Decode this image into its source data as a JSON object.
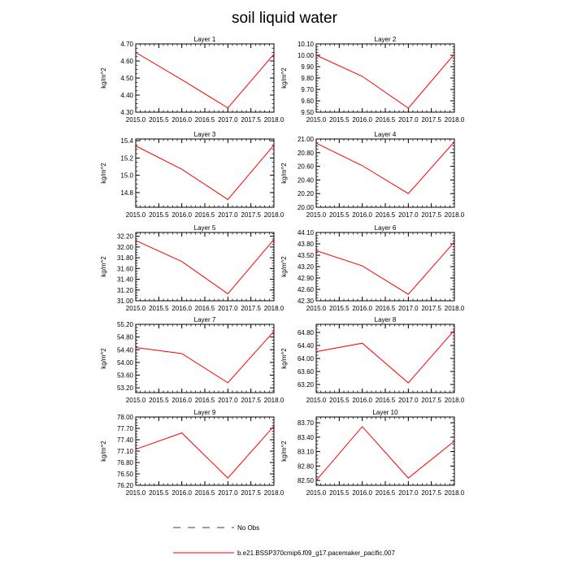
{
  "title": "soil liquid water",
  "legend": {
    "no_obs_label": "No Obs",
    "series_label": "b.e21.BSSP370cmip6.f09_g17.pacemaker_pacific.007",
    "colors": {
      "no_obs": "#3b2aa0",
      "series": "#ff0000"
    }
  },
  "chart_data": [
    {
      "type": "line",
      "title": "Layer 1",
      "ylabel": "kg/m^2",
      "x": [
        2015,
        2016,
        2017,
        2018
      ],
      "xlim": [
        2015,
        2018
      ],
      "xticks": [
        "2015.0",
        "2015.5",
        "2016.0",
        "2016.5",
        "2017.0",
        "2017.5",
        "2018.0"
      ],
      "ylim": [
        4.3,
        4.7
      ],
      "yticks": [
        "4.30",
        "4.40",
        "4.50",
        "4.60",
        "4.70"
      ],
      "series": [
        {
          "values": [
            4.65,
            4.49,
            4.325,
            4.64
          ],
          "color": "#ff0000"
        }
      ]
    },
    {
      "type": "line",
      "title": "Layer 2",
      "ylabel": "kg/m^2",
      "x": [
        2015,
        2016,
        2017,
        2018
      ],
      "xlim": [
        2015,
        2018
      ],
      "xticks": [
        "2015.0",
        "2015.5",
        "2016.0",
        "2016.5",
        "2017.0",
        "2017.5",
        "2018.0"
      ],
      "ylim": [
        9.5,
        10.1
      ],
      "yticks": [
        "9.50",
        "9.60",
        "9.70",
        "9.80",
        "9.90",
        "10.00",
        "10.10"
      ],
      "series": [
        {
          "values": [
            10.0,
            9.815,
            9.535,
            10.01
          ],
          "color": "#ff0000"
        }
      ]
    },
    {
      "type": "line",
      "title": "Layer 3",
      "ylabel": "kg/m^2",
      "x": [
        2015,
        2016,
        2017,
        2018
      ],
      "xlim": [
        2015,
        2018
      ],
      "xticks": [
        "2015.0",
        "2015.5",
        "2016.0",
        "2016.5",
        "2017.0",
        "2017.5",
        "2018.0"
      ],
      "ylim": [
        14.63,
        15.42
      ],
      "yticks": [
        "14.8",
        "15.0",
        "15.2",
        "15.4"
      ],
      "series": [
        {
          "values": [
            15.34,
            15.07,
            14.72,
            15.35
          ],
          "color": "#ff0000"
        }
      ]
    },
    {
      "type": "line",
      "title": "Layer 4",
      "ylabel": "kg/m^2",
      "x": [
        2015,
        2016,
        2017,
        2018
      ],
      "xlim": [
        2015,
        2018
      ],
      "xticks": [
        "2015.0",
        "2015.5",
        "2016.0",
        "2016.5",
        "2017.0",
        "2017.5",
        "2018.0"
      ],
      "ylim": [
        20.0,
        21.0
      ],
      "yticks": [
        "20.00",
        "20.20",
        "20.40",
        "20.60",
        "20.80",
        "21.00"
      ],
      "series": [
        {
          "values": [
            20.94,
            20.61,
            20.2,
            20.96
          ],
          "color": "#ff0000"
        }
      ]
    },
    {
      "type": "line",
      "title": "Layer 5",
      "ylabel": "kg/m^2",
      "x": [
        2015,
        2016,
        2017,
        2018
      ],
      "xlim": [
        2015,
        2018
      ],
      "xticks": [
        "2015.0",
        "2015.5",
        "2016.0",
        "2016.5",
        "2017.0",
        "2017.5",
        "2018.0"
      ],
      "ylim": [
        31.0,
        32.27
      ],
      "yticks": [
        "31.00",
        "31.20",
        "31.40",
        "31.60",
        "31.80",
        "32.00",
        "32.20"
      ],
      "series": [
        {
          "values": [
            32.12,
            31.73,
            31.13,
            32.14
          ],
          "color": "#ff0000"
        }
      ]
    },
    {
      "type": "line",
      "title": "Layer 6",
      "ylabel": "kg/m^2",
      "x": [
        2015,
        2016,
        2017,
        2018
      ],
      "xlim": [
        2015,
        2018
      ],
      "xticks": [
        "2015.0",
        "2015.5",
        "2016.0",
        "2016.5",
        "2017.0",
        "2017.5",
        "2018.0"
      ],
      "ylim": [
        42.3,
        44.1
      ],
      "yticks": [
        "42.30",
        "42.60",
        "42.90",
        "43.20",
        "43.50",
        "43.80",
        "44.10"
      ],
      "series": [
        {
          "values": [
            43.62,
            43.22,
            42.47,
            43.85
          ],
          "color": "#ff0000"
        }
      ]
    },
    {
      "type": "line",
      "title": "Layer 7",
      "ylabel": "kg/m^2",
      "x": [
        2015,
        2016,
        2017,
        2018
      ],
      "xlim": [
        2015,
        2018
      ],
      "xticks": [
        "2015.0",
        "2015.5",
        "2016.0",
        "2016.5",
        "2017.0",
        "2017.5",
        "2018.0"
      ],
      "ylim": [
        53.05,
        55.2
      ],
      "yticks": [
        "53.20",
        "53.60",
        "54.00",
        "54.40",
        "54.80",
        "55.20"
      ],
      "series": [
        {
          "values": [
            54.47,
            54.28,
            53.36,
            54.98
          ],
          "color": "#ff0000"
        }
      ]
    },
    {
      "type": "line",
      "title": "Layer 8",
      "ylabel": "kg/m^2",
      "x": [
        2015,
        2016,
        2017,
        2018
      ],
      "xlim": [
        2015,
        2018
      ],
      "xticks": [
        "2015.0",
        "2015.5",
        "2016.0",
        "2016.5",
        "2017.0",
        "2017.5",
        "2018.0"
      ],
      "ylim": [
        62.95,
        65.05
      ],
      "yticks": [
        "63.20",
        "63.60",
        "64.00",
        "64.40",
        "64.80"
      ],
      "series": [
        {
          "values": [
            64.21,
            64.47,
            63.25,
            64.87
          ],
          "color": "#ff0000"
        }
      ]
    },
    {
      "type": "line",
      "title": "Layer 9",
      "ylabel": "kg/m^2",
      "x": [
        2015,
        2016,
        2017,
        2018
      ],
      "xlim": [
        2015,
        2018
      ],
      "xticks": [
        "2015.0",
        "2015.5",
        "2016.0",
        "2016.5",
        "2017.0",
        "2017.5",
        "2018.0"
      ],
      "ylim": [
        76.2,
        78.0
      ],
      "yticks": [
        "76.20",
        "76.50",
        "76.80",
        "77.10",
        "77.40",
        "77.70",
        "78.00"
      ],
      "series": [
        {
          "values": [
            77.15,
            77.58,
            76.39,
            77.76
          ],
          "color": "#ff0000"
        }
      ]
    },
    {
      "type": "line",
      "title": "Layer 10",
      "ylabel": "kg/m^2",
      "x": [
        2015,
        2016,
        2017,
        2018
      ],
      "xlim": [
        2015,
        2018
      ],
      "xticks": [
        "2015.0",
        "2015.5",
        "2016.0",
        "2016.5",
        "2017.0",
        "2017.5",
        "2018.0"
      ],
      "ylim": [
        82.4,
        83.82
      ],
      "yticks": [
        "82.50",
        "82.80",
        "83.10",
        "83.40",
        "83.70"
      ],
      "series": [
        {
          "values": [
            82.5,
            83.62,
            82.55,
            83.32
          ],
          "color": "#ff0000"
        }
      ]
    }
  ]
}
